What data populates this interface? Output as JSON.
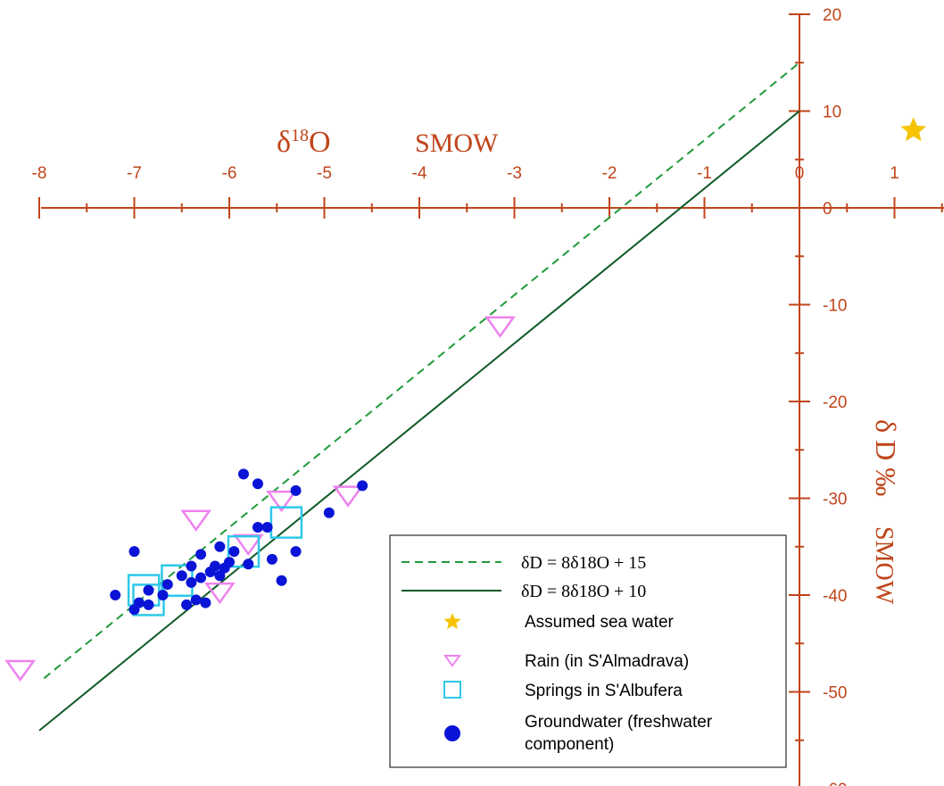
{
  "chart_data": {
    "type": "scatter",
    "x_axis": {
      "ticks": [
        -8,
        -7,
        -6,
        -5,
        -4,
        -3,
        -2,
        -1,
        0,
        1
      ],
      "tick_labels": [
        "-8",
        "-7",
        "-6",
        "-5",
        "-4",
        "-3",
        "-2",
        "-1",
        "0",
        "1"
      ],
      "title_part1": "δ",
      "title_sup": "18",
      "title_part2": "O",
      "title_unit": "SMOW",
      "range": [
        -8.0,
        1.5
      ]
    },
    "y_axis": {
      "ticks": [
        20,
        10,
        0,
        -10,
        -20,
        -30,
        -40,
        -50,
        -60
      ],
      "tick_labels": [
        "20",
        "10",
        "0",
        "-10",
        "-20",
        "-30",
        "-40",
        "-50",
        "-60"
      ],
      "title_main": "δ D ‰",
      "title_unit": "SMOW",
      "range": [
        -60,
        20
      ]
    },
    "lines": [
      {
        "name": "δD = 8δ18O + 15",
        "legend_text": "δD = 8δ¹⁸O + 15",
        "slope": 8,
        "intercept": 15,
        "x_range": [
          -7.95,
          0
        ],
        "style": "dashed",
        "color": "#1f9a3a"
      },
      {
        "name": "δD = 8δ18O + 10",
        "legend_text": "δD = 8δ¹⁸O + 10",
        "slope": 8,
        "intercept": 10,
        "x_range": [
          -8.0,
          0
        ],
        "style": "solid",
        "color": "#0e5a28"
      }
    ],
    "series": [
      {
        "name": "Assumed sea water",
        "marker": "star",
        "color": "#f5c300",
        "points": [
          [
            1.2,
            8.0
          ]
        ]
      },
      {
        "name": "Rain (in S'Almadrava)",
        "marker": "triangle-down",
        "color": "#ee82ee",
        "points": [
          [
            -3.15,
            -12.0
          ],
          [
            -4.75,
            -29.5
          ],
          [
            -5.45,
            -30.0
          ],
          [
            -6.35,
            -32.0
          ],
          [
            -5.8,
            -34.5
          ],
          [
            -6.1,
            -39.5
          ],
          [
            -8.2,
            -47.5
          ]
        ]
      },
      {
        "name": "Springs in S'Albufera",
        "marker": "square",
        "color": "#2ec8e8",
        "points": [
          [
            -5.4,
            -32.5
          ],
          [
            -5.85,
            -35.5
          ],
          [
            -6.55,
            -38.5
          ],
          [
            -6.9,
            -39.5
          ],
          [
            -6.85,
            -40.5
          ]
        ]
      },
      {
        "name": "Groundwater (freshwater component)",
        "marker": "circle",
        "color": "#0a14d6",
        "points": [
          [
            -5.85,
            -27.5
          ],
          [
            -5.7,
            -28.5
          ],
          [
            -5.3,
            -29.2
          ],
          [
            -4.6,
            -28.7
          ],
          [
            -4.95,
            -31.5
          ],
          [
            -5.6,
            -33.0
          ],
          [
            -5.3,
            -35.5
          ],
          [
            -5.55,
            -36.3
          ],
          [
            -5.8,
            -36.8
          ],
          [
            -6.1,
            -35.0
          ],
          [
            -5.95,
            -35.5
          ],
          [
            -6.0,
            -36.6
          ],
          [
            -6.15,
            -37.0
          ],
          [
            -6.3,
            -35.8
          ],
          [
            -6.4,
            -37.0
          ],
          [
            -6.5,
            -38.0
          ],
          [
            -6.4,
            -38.7
          ],
          [
            -6.3,
            -38.2
          ],
          [
            -6.2,
            -37.6
          ],
          [
            -6.05,
            -37.2
          ],
          [
            -6.1,
            -38.0
          ],
          [
            -6.65,
            -38.9
          ],
          [
            -6.85,
            -39.5
          ],
          [
            -6.7,
            -40.0
          ],
          [
            -7.2,
            -40.0
          ],
          [
            -6.95,
            -40.8
          ],
          [
            -6.85,
            -41.0
          ],
          [
            -7.0,
            -41.5
          ],
          [
            -6.35,
            -40.5
          ],
          [
            -6.45,
            -41.0
          ],
          [
            -6.25,
            -40.8
          ],
          [
            -5.45,
            -38.5
          ],
          [
            -7.0,
            -35.5
          ],
          [
            -5.7,
            -33.0
          ]
        ]
      }
    ],
    "legend": {
      "placement": "bottom-right",
      "entries": [
        "δD = 8δ18O + 15",
        "δD = 8δ18O + 10",
        "Assumed sea water",
        "Rain (in S'Almadrava)",
        "Springs in S'Albufera",
        "Groundwater (freshwater",
        "component)"
      ]
    },
    "grid": false,
    "axis_color": "#c0441a"
  }
}
